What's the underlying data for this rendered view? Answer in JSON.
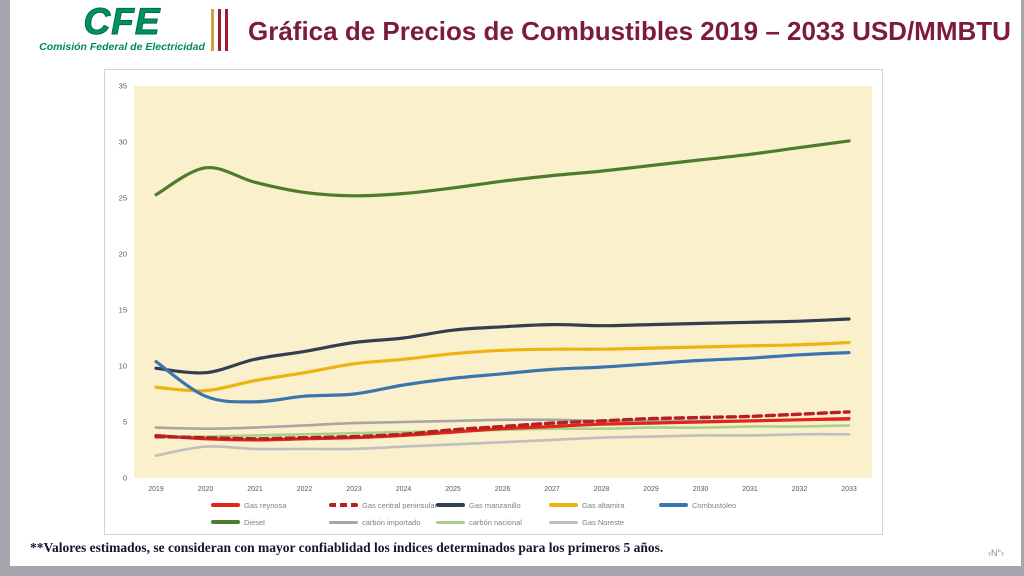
{
  "page": {
    "frame_color": "#a6a6af",
    "slide_number": "‹N°›"
  },
  "header": {
    "logo": {
      "acronym": "CFE",
      "subtitle": "Comisión Federal de Electricidad",
      "green": "#00935f"
    },
    "separator_colors": [
      "#c9a348",
      "#9b1c33",
      "#9b1c33"
    ],
    "title": "Gráfica de Precios de Combustibles 2019 – 2033 USD/MMBTU",
    "title_color": "#7c1b3f"
  },
  "footnote": "**Valores estimados, se consideran con mayor confiablidad los índices determinados para los primeros 5 años.",
  "chart_data": {
    "type": "line",
    "title": "Gráfica de Precios de Combustibles 2019 – 2033 USD/MMBTU",
    "xlabel": "",
    "ylabel": "",
    "x": [
      2019,
      2020,
      2021,
      2022,
      2023,
      2024,
      2025,
      2026,
      2027,
      2028,
      2029,
      2030,
      2031,
      2032,
      2033
    ],
    "ylim": [
      0,
      35
    ],
    "yticks": [
      0,
      5,
      10,
      15,
      20,
      25,
      30,
      35
    ],
    "grid": false,
    "plot_bg": "#fbf0cc",
    "axis_text_color": "#595959",
    "legend_text_color": "#7f7f7f",
    "legend_position": "bottom",
    "series": [
      {
        "name": "Gas reynosa",
        "color": "#e1251b",
        "dash": false,
        "width": 3.2,
        "values": [
          3.8,
          3.5,
          3.4,
          3.5,
          3.6,
          3.8,
          4.1,
          4.4,
          4.6,
          4.8,
          4.9,
          5.0,
          5.1,
          5.2,
          5.3
        ]
      },
      {
        "name": "Gas central peninsular",
        "color": "#b42025",
        "dash": true,
        "width": 3.4,
        "values": [
          3.7,
          3.6,
          3.5,
          3.6,
          3.7,
          3.9,
          4.3,
          4.6,
          4.9,
          5.1,
          5.3,
          5.4,
          5.5,
          5.7,
          5.9
        ]
      },
      {
        "name": "Gas manzanillo",
        "color": "#333f50",
        "dash": false,
        "width": 3.2,
        "values": [
          9.8,
          9.4,
          10.6,
          11.3,
          12.1,
          12.5,
          13.2,
          13.5,
          13.7,
          13.6,
          13.7,
          13.8,
          13.9,
          14.0,
          14.2
        ]
      },
      {
        "name": "Gas altamira",
        "color": "#eeb211",
        "dash": false,
        "width": 3.2,
        "values": [
          8.1,
          7.8,
          8.7,
          9.4,
          10.2,
          10.6,
          11.1,
          11.4,
          11.5,
          11.5,
          11.6,
          11.7,
          11.8,
          11.9,
          12.1
        ]
      },
      {
        "name": "Combustóleo",
        "color": "#3a76ad",
        "dash": false,
        "width": 3.2,
        "values": [
          10.4,
          7.3,
          6.8,
          7.3,
          7.5,
          8.3,
          8.9,
          9.3,
          9.7,
          9.9,
          10.2,
          10.5,
          10.7,
          11.0,
          11.2
        ]
      },
      {
        "name": "Diesel",
        "color": "#4c7d2f",
        "dash": false,
        "width": 3.2,
        "values": [
          25.3,
          27.7,
          26.4,
          25.5,
          25.2,
          25.4,
          25.9,
          26.5,
          27.0,
          27.4,
          27.9,
          28.4,
          28.9,
          29.5,
          30.1
        ]
      },
      {
        "name": "carbón importado",
        "color": "#a6a6a6",
        "dash": false,
        "width": 2.6,
        "values": [
          4.5,
          4.4,
          4.5,
          4.7,
          4.9,
          5.0,
          5.1,
          5.2,
          5.2,
          5.1,
          5.1,
          5.1,
          5.1,
          5.2,
          5.2
        ]
      },
      {
        "name": "carbón nacional",
        "color": "#a9d08e",
        "dash": false,
        "width": 2.6,
        "values": [
          3.6,
          3.7,
          3.8,
          3.9,
          4.0,
          4.1,
          4.2,
          4.3,
          4.4,
          4.4,
          4.5,
          4.5,
          4.6,
          4.6,
          4.7
        ]
      },
      {
        "name": "Gas Noreste",
        "color": "#bfbfbf",
        "dash": false,
        "width": 2.6,
        "values": [
          2.0,
          2.8,
          2.6,
          2.6,
          2.6,
          2.8,
          3.0,
          3.2,
          3.4,
          3.6,
          3.7,
          3.8,
          3.8,
          3.9,
          3.9
        ]
      }
    ],
    "draw_order": [
      6,
      7,
      8,
      5,
      2,
      3,
      4,
      0,
      1
    ],
    "legend_rows": [
      [
        0,
        1,
        2,
        3,
        4
      ],
      [
        5,
        6,
        7,
        8
      ]
    ]
  }
}
